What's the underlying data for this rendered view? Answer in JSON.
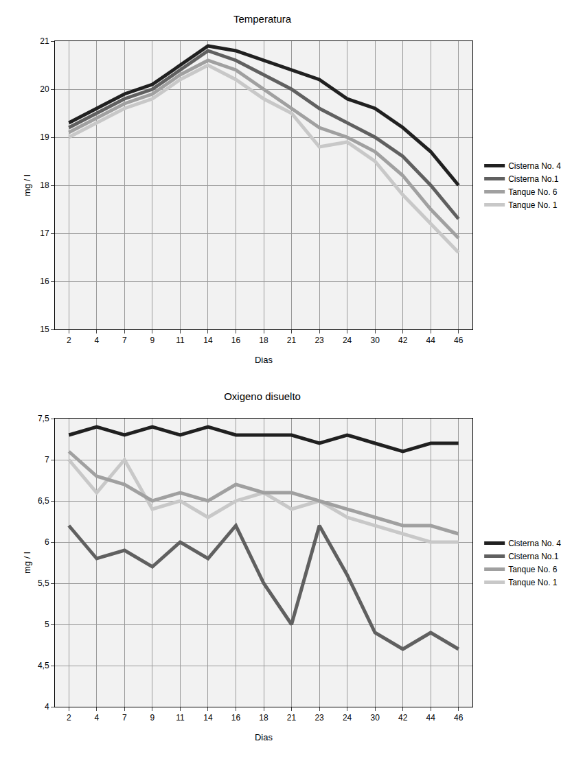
{
  "chart_data": [
    {
      "type": "line",
      "title": "Temperatura",
      "x_label": "Dias",
      "y_label": "mg / l",
      "categories": [
        "2",
        "4",
        "7",
        "9",
        "11",
        "14",
        "16",
        "18",
        "21",
        "23",
        "24",
        "30",
        "42",
        "44",
        "46"
      ],
      "ylim": [
        15,
        21
      ],
      "yticks": [
        15,
        16,
        17,
        18,
        19,
        20,
        21
      ],
      "grid": true,
      "legend": "right",
      "series": [
        {
          "name": "Tanque No. 1",
          "color": "#c8c8c8",
          "values": [
            19.0,
            19.3,
            19.6,
            19.8,
            20.2,
            20.5,
            20.2,
            19.8,
            19.5,
            18.8,
            18.9,
            18.5,
            17.8,
            17.2,
            16.6
          ]
        },
        {
          "name": "Tanque No. 6",
          "color": "#a0a0a0",
          "values": [
            19.1,
            19.4,
            19.7,
            19.9,
            20.3,
            20.6,
            20.4,
            20.0,
            19.6,
            19.2,
            19.0,
            18.7,
            18.2,
            17.5,
            16.9
          ]
        },
        {
          "name": "Cisterna No.1",
          "color": "#606060",
          "values": [
            19.2,
            19.5,
            19.8,
            20.0,
            20.4,
            20.8,
            20.6,
            20.3,
            20.0,
            19.6,
            19.3,
            19.0,
            18.6,
            18.0,
            17.3
          ]
        },
        {
          "name": "Cisterna No. 4",
          "color": "#202020",
          "values": [
            19.3,
            19.6,
            19.9,
            20.1,
            20.5,
            20.9,
            20.8,
            20.6,
            20.4,
            20.2,
            19.8,
            19.6,
            19.2,
            18.7,
            18.0
          ]
        }
      ]
    },
    {
      "type": "line",
      "title": "Oxigeno disuelto",
      "x_label": "Dias",
      "y_label": "mg / l",
      "categories": [
        "2",
        "4",
        "7",
        "9",
        "11",
        "14",
        "16",
        "18",
        "21",
        "23",
        "24",
        "30",
        "42",
        "44",
        "46"
      ],
      "ylim": [
        4,
        7.5
      ],
      "yticks": [
        4,
        {
          "value": 4.5,
          "label": "4,5"
        },
        5,
        {
          "value": 5.5,
          "label": "5,5"
        },
        6,
        {
          "value": 6.5,
          "label": "6,5"
        },
        7,
        {
          "value": 7.5,
          "label": "7,5"
        }
      ],
      "grid": true,
      "legend": "right",
      "series": [
        {
          "name": "Tanque No. 1",
          "color": "#c8c8c8",
          "values": [
            7.0,
            6.6,
            7.0,
            6.4,
            6.5,
            6.3,
            6.5,
            6.6,
            6.4,
            6.5,
            6.3,
            6.2,
            6.1,
            6.0,
            6.0
          ]
        },
        {
          "name": "Tanque No. 6",
          "color": "#a0a0a0",
          "values": [
            7.1,
            6.8,
            6.7,
            6.5,
            6.6,
            6.5,
            6.7,
            6.6,
            6.6,
            6.5,
            6.4,
            6.3,
            6.2,
            6.2,
            6.1
          ]
        },
        {
          "name": "Cisterna No.1",
          "color": "#606060",
          "values": [
            6.2,
            5.8,
            5.9,
            5.7,
            6.0,
            5.8,
            6.2,
            5.5,
            5.0,
            6.2,
            5.6,
            4.9,
            4.7,
            4.9,
            4.7
          ]
        },
        {
          "name": "Cisterna No. 4",
          "color": "#202020",
          "values": [
            7.3,
            7.4,
            7.3,
            7.4,
            7.3,
            7.4,
            7.3,
            7.3,
            7.3,
            7.2,
            7.3,
            7.2,
            7.1,
            7.2,
            7.2
          ]
        }
      ]
    }
  ]
}
